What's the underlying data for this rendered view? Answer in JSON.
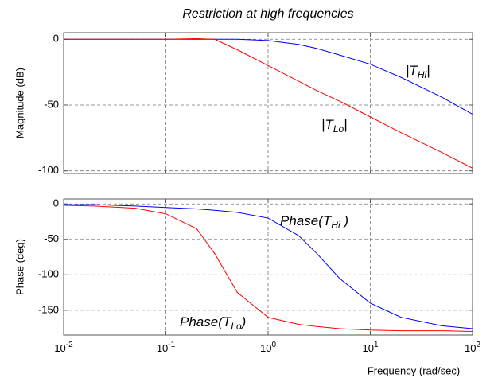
{
  "chart_data": [
    {
      "type": "line",
      "title": "Restriction at high frequencies",
      "y_label": "Magnitude (dB)",
      "x_scale": "log",
      "grid": true,
      "x": [
        0.01,
        0.02,
        0.05,
        0.1,
        0.2,
        0.3,
        0.5,
        1,
        2,
        3,
        5,
        10,
        20,
        50,
        100
      ],
      "xlim": [
        0.01,
        100
      ],
      "xticks": [
        0.01,
        0.1,
        1,
        10,
        100
      ],
      "ylim": [
        -102,
        5
      ],
      "yticks": [
        0,
        -50,
        -100
      ],
      "series": [
        {
          "color": "#0000ff",
          "values": [
            0,
            0,
            0,
            0,
            0,
            0,
            0,
            -1,
            -4,
            -7,
            -12,
            -19,
            -29,
            -44,
            -57
          ]
        },
        {
          "color": "#ff0000",
          "values": [
            0,
            0,
            0,
            0,
            0.5,
            0,
            -8,
            -20,
            -32,
            -39,
            -47,
            -59,
            -71,
            -86,
            -98
          ]
        }
      ],
      "annotations": [
        {
          "prefix": "|",
          "base": "T",
          "sub": "Hi",
          "suffix": "|"
        },
        {
          "prefix": "|",
          "base": "T",
          "sub": "Lo",
          "suffix": "|"
        }
      ]
    },
    {
      "type": "line",
      "y_label": "Phase (deg)",
      "x_label": "Frequency (rad/sec)",
      "x_scale": "log",
      "grid": true,
      "x": [
        0.01,
        0.02,
        0.05,
        0.1,
        0.2,
        0.3,
        0.5,
        1,
        2,
        3,
        5,
        10,
        20,
        50,
        100
      ],
      "xlim": [
        0.01,
        100
      ],
      "xticks": [
        {
          "value": 0.01,
          "label": "10",
          "exponent": "-2"
        },
        {
          "value": 0.1,
          "label": "10",
          "exponent": "-1"
        },
        {
          "value": 1,
          "label": "10",
          "exponent": "0"
        },
        {
          "value": 10,
          "label": "10",
          "exponent": "1"
        },
        {
          "value": 100,
          "label": "10",
          "exponent": "2"
        }
      ],
      "ylim": [
        -185,
        7
      ],
      "yticks": [
        0,
        -50,
        -100,
        -150
      ],
      "series": [
        {
          "color": "#0000ff",
          "values": [
            -1,
            -1,
            -3,
            -5,
            -7,
            -9,
            -12,
            -20,
            -45,
            -70,
            -105,
            -140,
            -160,
            -172,
            -176
          ]
        },
        {
          "color": "#ff0000",
          "values": [
            -2,
            -3,
            -6,
            -14,
            -35,
            -70,
            -125,
            -160,
            -170,
            -173,
            -176,
            -178,
            -179,
            -179,
            -180
          ]
        }
      ],
      "annotations": [
        {
          "prefix": "Phase(",
          "base": "T",
          "sub": "Hi",
          "suffix": " )"
        },
        {
          "prefix": "Phase(",
          "base": "T",
          "sub": "Lo",
          "suffix": ")"
        }
      ]
    }
  ]
}
